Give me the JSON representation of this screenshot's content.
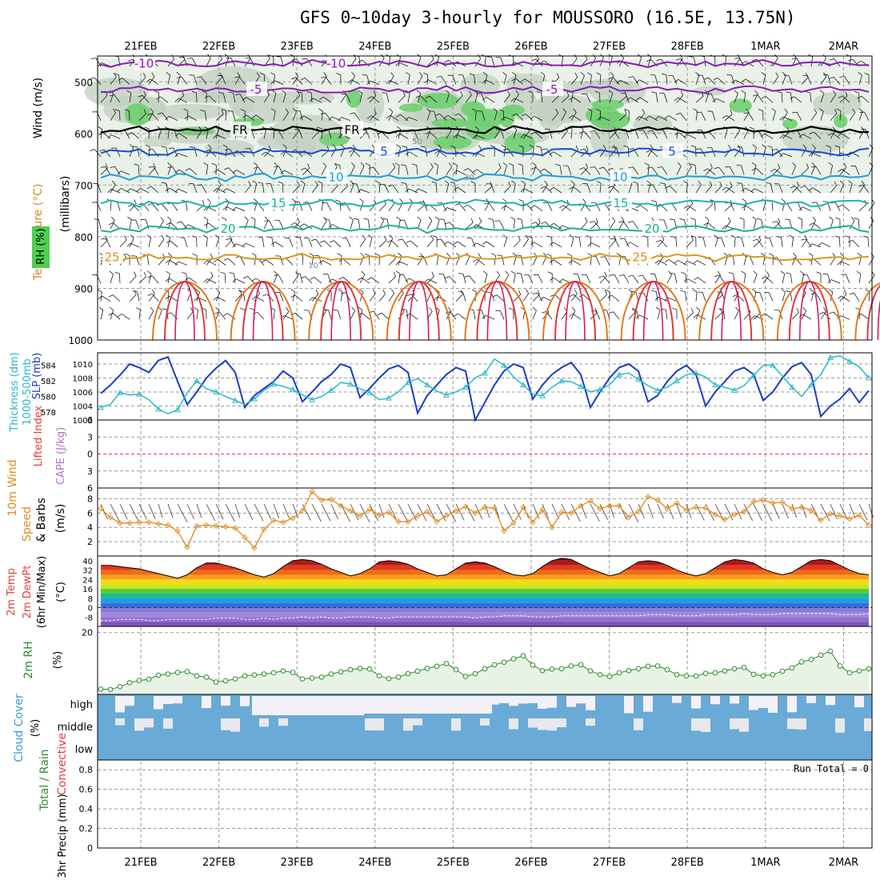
{
  "title": "GFS 0~10day 3-hourly for MOUSSORO (16.5E, 13.75N)",
  "date_labels": [
    "21FEB",
    "22FEB",
    "23FEB",
    "24FEB",
    "25FEB",
    "26FEB",
    "27FEB",
    "28FEB",
    "1MAR",
    "2MAR"
  ],
  "run_total_label": "Run Total = 0",
  "colors": {
    "grid": "#9a9a9a",
    "slp": "#1a3cc8",
    "thickness": "#2ab8c8",
    "wind": "#e08a1e",
    "rh2m": "#2e8b2e",
    "rh_fill": "#e8f3e6",
    "cloud": "#6aaad6",
    "cloud_clear": "#f3f0f8",
    "freezing": "#000000"
  },
  "chart_data": [
    {
      "type": "contour",
      "title": "Upper-air time section",
      "yaxis_labels": [
        "Temperature (°C)",
        "Wind (m/s)",
        "(millibars)",
        "RH (%)"
      ],
      "yticks": [
        500,
        600,
        700,
        800,
        900,
        1000
      ],
      "ylim": [
        450,
        1000
      ],
      "isotherms": [
        {
          "label": "-10",
          "p": 465,
          "color": "#8a1ab8"
        },
        {
          "label": "-5",
          "p": 515,
          "color": "#8a1ab8"
        },
        {
          "label": "FR",
          "p": 593,
          "color": "#000000"
        },
        {
          "label": "5",
          "p": 635,
          "color": "#1a4ad6"
        },
        {
          "label": "10",
          "p": 685,
          "color": "#1aa0d6"
        },
        {
          "label": "15",
          "p": 735,
          "color": "#17b8a8"
        },
        {
          "label": "20",
          "p": 785,
          "color": "#1ab87a"
        },
        {
          "label": "25",
          "p": 840,
          "color": "#d89a1a"
        }
      ],
      "rh_labels": [
        "50",
        "30",
        "10"
      ]
    },
    {
      "type": "line",
      "yaxis_labels": [
        "Thickness (dm)",
        "1000-500mb",
        "SLP (mb)"
      ],
      "x": [
        0,
        3,
        6,
        9,
        12,
        15,
        18,
        21,
        24,
        27,
        30,
        33,
        36,
        39,
        42,
        45,
        48,
        51,
        54,
        57,
        60,
        63,
        66,
        69,
        72,
        75,
        78,
        81,
        84,
        87,
        90,
        93,
        96,
        99,
        102,
        105,
        108,
        111,
        114,
        117,
        120,
        123,
        126,
        129,
        132,
        135,
        138,
        141,
        144,
        147,
        150,
        153,
        156,
        159,
        162,
        165,
        168,
        171,
        174,
        177,
        180,
        183,
        186,
        189,
        192,
        195,
        198,
        201,
        204,
        207,
        210,
        213,
        216,
        219,
        222,
        225,
        228,
        231,
        234,
        237,
        240
      ],
      "thickness_ticks": [
        578,
        580,
        582,
        584
      ],
      "slp_ticks": [
        1002,
        1004,
        1006,
        1008,
        1010
      ],
      "series": [
        {
          "name": "SLP",
          "values": [
            1005.8,
            1007,
            1008.4,
            1010,
            1009.5,
            1008.8,
            1010.5,
            1011,
            1007.5,
            1004.2,
            1006,
            1008,
            1009.4,
            1010.5,
            1008.8,
            1003.8,
            1005.5,
            1006.5,
            1007.5,
            1009,
            1008,
            1004.6,
            1006,
            1007.5,
            1008.5,
            1010,
            1009.5,
            1005.2,
            1006.5,
            1008,
            1009.3,
            1009.8,
            1008.8,
            1003,
            1005.5,
            1007,
            1008.5,
            1009.5,
            1009,
            1002,
            1004.5,
            1007,
            1009,
            1010,
            1009.5,
            1005,
            1007,
            1008.5,
            1009.5,
            1010.2,
            1008.5,
            1003.8,
            1006,
            1008,
            1009.5,
            1010,
            1009,
            1004.6,
            1005.5,
            1007.5,
            1009,
            1009.8,
            1008.5,
            1004,
            1006,
            1007.5,
            1009,
            1009.5,
            1008.5,
            1004.8,
            1006,
            1008,
            1009.6,
            1010.2,
            1008.5,
            1002.5,
            1004,
            1005,
            1006.5,
            1004.5,
            1006.2
          ]
        },
        {
          "name": "Thickness",
          "values": [
            578.6,
            579,
            580.5,
            580.2,
            580.3,
            579.6,
            578.4,
            577.8,
            578.3,
            580.5,
            582,
            581,
            580.6,
            580,
            579.5,
            579,
            579.7,
            580.8,
            581.6,
            581.3,
            580.9,
            580.2,
            579.6,
            580,
            580.8,
            581.8,
            581.6,
            581,
            580.5,
            579.6,
            579.8,
            580.6,
            581.8,
            582.3,
            581.5,
            580.7,
            580.2,
            580.6,
            581.2,
            582.4,
            583,
            584.8,
            584,
            582.5,
            581.5,
            580.3,
            580.1,
            581.2,
            582,
            581.9,
            581.3,
            580.6,
            580.9,
            581.5,
            582.8,
            583,
            582.2,
            581.4,
            580.8,
            581.2,
            582,
            582.8,
            583,
            582.5,
            581.5,
            581.2,
            580.8,
            581.4,
            582.7,
            584,
            584,
            582.6,
            581.2,
            580,
            581.5,
            582.8,
            585,
            585.2,
            584.5,
            583.8,
            582.4
          ]
        }
      ]
    },
    {
      "type": "line",
      "yaxis_labels": [
        "Lifted Index",
        "CAPE (J/kg)"
      ],
      "yticks": [
        6,
        3,
        0,
        -3,
        -6
      ],
      "ylim": [
        -6,
        6
      ],
      "series": [
        {
          "name": "Lifted Index",
          "values": []
        },
        {
          "name": "CAPE",
          "values": []
        }
      ]
    },
    {
      "type": "line",
      "yaxis_labels": [
        "10m Wind",
        "Speed",
        "& Barbs",
        "(m/s)"
      ],
      "yticks": [
        2,
        4,
        6,
        8
      ],
      "ylim": [
        0,
        9.5
      ],
      "series": [
        {
          "name": "Speed",
          "values": [
            6.6,
            5.4,
            4.6,
            4.6,
            4.7,
            4.7,
            4.5,
            4.3,
            3.5,
            1.2,
            4.2,
            4.3,
            4.2,
            4.1,
            3.9,
            2.6,
            1.1,
            3.7,
            5,
            4.7,
            5.3,
            6.3,
            9,
            7.8,
            7.9,
            7,
            6.3,
            5.6,
            6.5,
            5.7,
            6.1,
            4.8,
            4.8,
            5.6,
            6.2,
            4.8,
            5.6,
            6.3,
            6.9,
            6,
            6.8,
            6.7,
            3.5,
            4.6,
            6.8,
            4.7,
            6.5,
            4,
            6.1,
            6,
            7,
            7.7,
            6.6,
            7,
            7,
            5.4,
            6.2,
            8.3,
            7.8,
            6.6,
            7.4,
            6.4,
            6.8,
            6.7,
            5.8,
            5.1,
            5.8,
            6.2,
            7.6,
            7.8,
            7.4,
            7.5,
            6.6,
            6.8,
            6.4,
            5,
            5.9,
            5.6,
            5.2,
            5.7,
            4.3
          ]
        }
      ]
    },
    {
      "type": "area",
      "yaxis_labels": [
        "2m Temp",
        "2m DewPt",
        "(6hr Min/Max)",
        "(°C)"
      ],
      "yticks": [
        40,
        32,
        24,
        16,
        8,
        0,
        -8
      ],
      "ylim": [
        -16,
        44
      ],
      "series": [
        {
          "name": "2m Temp",
          "values": [
            36,
            36,
            35,
            34,
            33,
            31,
            29,
            27,
            25,
            28,
            34,
            38,
            38,
            36,
            34,
            31,
            28,
            26,
            29,
            35,
            40,
            41,
            40,
            37,
            33,
            30,
            27,
            29,
            33,
            39,
            40,
            39,
            37,
            33,
            30,
            27,
            28,
            33,
            38,
            39,
            38,
            35,
            31,
            28,
            27,
            29,
            35,
            40,
            42,
            41,
            37,
            33,
            30,
            27,
            29,
            34,
            39,
            40,
            39,
            36,
            32,
            29,
            27,
            29,
            34,
            39,
            41,
            40,
            38,
            33,
            30,
            28,
            30,
            35,
            40,
            41,
            40,
            36,
            32,
            29,
            28
          ]
        },
        {
          "name": "2m DewPt",
          "values": [
            -11,
            -11,
            -10,
            -10,
            -10,
            -11,
            -11,
            -10,
            -10,
            -10,
            -10,
            -10,
            -9,
            -9,
            -9,
            -10,
            -10,
            -9,
            -10,
            -9,
            -9,
            -8,
            -9,
            -8,
            -9,
            -9,
            -8,
            -8,
            -8,
            -9,
            -9,
            -8,
            -8,
            -8,
            -8,
            -8,
            -8,
            -8,
            -8,
            -9,
            -8,
            -8,
            -7,
            -7,
            -7,
            -8,
            -8,
            -8,
            -7,
            -7,
            -7,
            -7,
            -7,
            -7,
            -7,
            -7,
            -7,
            -6,
            -6,
            -6,
            -7,
            -7,
            -7,
            -6,
            -6,
            -6,
            -6,
            -5,
            -6,
            -6,
            -6,
            -5,
            -5,
            -5,
            -5,
            -5,
            -5,
            -6,
            -6,
            -6,
            -5
          ]
        }
      ]
    },
    {
      "type": "area",
      "yaxis_labels": [
        "2m RH",
        "(%)"
      ],
      "yticks": [
        20
      ],
      "ylim": [
        0,
        22
      ],
      "series": [
        {
          "name": "2m RH",
          "values": [
            1.7,
            1.6,
            2.5,
            3.8,
            4.5,
            4.9,
            6.2,
            6.6,
            7.1,
            7.4,
            6.0,
            5.6,
            4.0,
            4.4,
            5.0,
            6.0,
            6.3,
            6.6,
            7.0,
            7.6,
            7.1,
            5.0,
            5.3,
            5.6,
            6.6,
            7.3,
            8.0,
            8.4,
            8.2,
            6.0,
            5.1,
            5.6,
            6.7,
            7.5,
            8.4,
            9.1,
            10.0,
            8.0,
            5.8,
            6.7,
            8.3,
            9.6,
            10.4,
            11.5,
            12.5,
            9.5,
            7.7,
            8.2,
            8.3,
            9.2,
            9.6,
            7.6,
            6.4,
            5.8,
            7.0,
            7.7,
            8.3,
            9.1,
            9.2,
            8.0,
            6.4,
            6.0,
            5.9,
            6.8,
            7.0,
            7.6,
            8.3,
            8.7,
            6.5,
            6.0,
            6.4,
            7.5,
            8.6,
            10.5,
            11.3,
            12.7,
            14.0,
            9.2,
            7.0,
            7.6,
            8.3
          ]
        }
      ]
    },
    {
      "type": "heatmap",
      "yaxis_labels": [
        "Cloud Cover",
        "(%)"
      ],
      "rows": [
        "high",
        "middle",
        "low"
      ]
    },
    {
      "type": "bar",
      "yaxis_labels": [
        "Total / Rain",
        "Convective",
        "3hr Precip (mm)"
      ],
      "yticks": [
        0,
        0.2,
        0.4,
        0.6,
        0.8
      ],
      "ylim": [
        0,
        0.9
      ],
      "values": []
    }
  ]
}
